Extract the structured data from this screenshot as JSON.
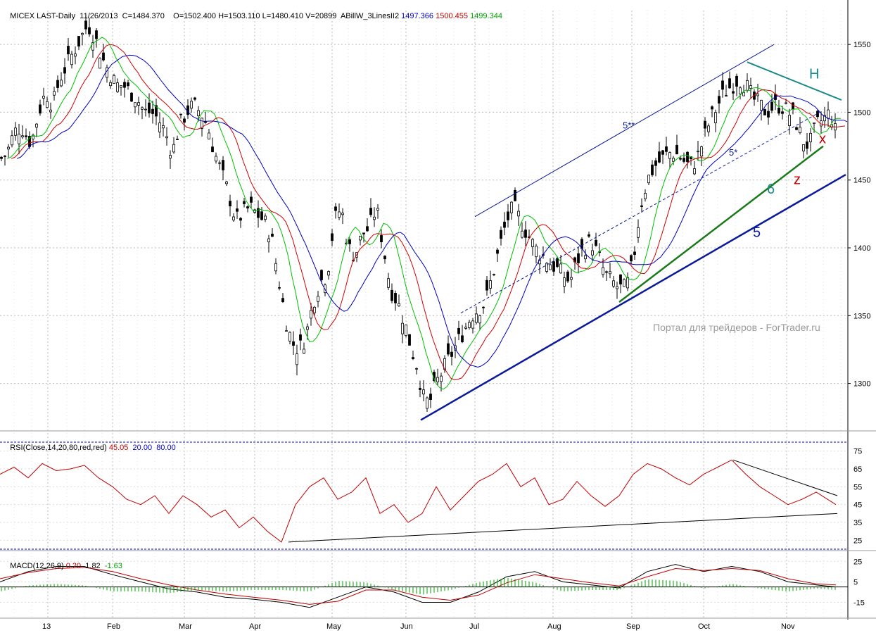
{
  "header": {
    "symbol": "MICEX LAST-Daily",
    "date": "11/26/2013",
    "close": "C=1484.370",
    "open": "O=1502.400",
    "high": "H=1503.110",
    "low": "L=1480.410",
    "volume": "V=20899",
    "indicator": "ABillW_3LinesII2",
    "ind_v1": "1497.366",
    "ind_v2": "1500.455",
    "ind_v3": "1499.344"
  },
  "rsi_header": {
    "label": "RSI(Close,14,20,80,red,red)",
    "value": "45.05",
    "lo": "20.00",
    "hi": "80.00"
  },
  "macd_header": {
    "label": "MACD(12,26,9)",
    "v1": "0.20",
    "v2": "1.82",
    "v3": "-1.63"
  },
  "annotations": {
    "wave_5_top": "5**",
    "wave_5_mid": "5*",
    "label_H": "H",
    "label_x": "x",
    "label_z": "z",
    "label_6": "6",
    "label_5": "5"
  },
  "watermark": "Портал для трейдеров - ForTrader.ru",
  "colors": {
    "price_bars": "#000000",
    "ma_green": "#00c000",
    "ma_red": "#d00000",
    "ma_blue": "#0000c0",
    "rsi": "#c00000",
    "macd": "#000000",
    "signal": "#c00000",
    "hist": "#00a000",
    "trend_blue": "#0a1a9a",
    "trend_green": "#1a7a1a",
    "trend_teal": "#1a8a8a"
  },
  "chart_data": [
    {
      "type": "candlestick",
      "panel": "price",
      "x_ticks": [
        "13",
        "Feb",
        "Mar",
        "Apr",
        "May",
        "Jun",
        "Jul",
        "Aug",
        "Sep",
        "Oct",
        "Nov"
      ],
      "y_ticks": [
        1550,
        1500,
        1450,
        1400,
        1350,
        1300
      ],
      "ylim": [
        1265,
        1575
      ],
      "grid": true,
      "series": [
        {
          "name": "close",
          "x": [
            0,
            10,
            20,
            30,
            40,
            45,
            55,
            65,
            75,
            85,
            95,
            105,
            115,
            125,
            135,
            145,
            155,
            165,
            175,
            185,
            195,
            205,
            215,
            225,
            235,
            245,
            255,
            265,
            275,
            285,
            295,
            305,
            315,
            325,
            335,
            345,
            355,
            365,
            375,
            385,
            395,
            405,
            415,
            425,
            435,
            445,
            455,
            465,
            475,
            485,
            495,
            505,
            515,
            525,
            535,
            545,
            555,
            565,
            575,
            585,
            595,
            600,
            610,
            620,
            630,
            640,
            650,
            660,
            670,
            680,
            690,
            700,
            710,
            720,
            730,
            740,
            750,
            760,
            770,
            780,
            790,
            800,
            810,
            820,
            830,
            840,
            850,
            860,
            870,
            880,
            890,
            900,
            910,
            920,
            930,
            940,
            950,
            960,
            970,
            980,
            990,
            1000,
            1010,
            1020,
            1030,
            1040,
            1050,
            1060,
            1070,
            1080,
            1090,
            1100,
            1110,
            1120,
            1130,
            1140,
            1150,
            1160,
            1170,
            1180,
            1188
          ],
          "y": [
            1465,
            1470,
            1485,
            1490,
            1480,
            1478,
            1500,
            1515,
            1505,
            1525,
            1535,
            1545,
            1555,
            1565,
            1555,
            1540,
            1530,
            1520,
            1520,
            1515,
            1510,
            1500,
            1500,
            1495,
            1485,
            1470,
            1490,
            1500,
            1505,
            1500,
            1490,
            1470,
            1455,
            1440,
            1420,
            1425,
            1430,
            1425,
            1420,
            1410,
            1380,
            1350,
            1330,
            1325,
            1335,
            1360,
            1375,
            1380,
            1420,
            1430,
            1400,
            1395,
            1410,
            1415,
            1430,
            1400,
            1370,
            1360,
            1345,
            1325,
            1310,
            1290,
            1285,
            1300,
            1310,
            1320,
            1330,
            1340,
            1350,
            1355,
            1360,
            1380,
            1400,
            1420,
            1430,
            1420,
            1410,
            1400,
            1395,
            1390,
            1385,
            1380,
            1375,
            1390,
            1400,
            1405,
            1395,
            1380,
            1375,
            1370,
            1370,
            1390,
            1430,
            1450,
            1460,
            1465,
            1470,
            1470,
            1465,
            1460,
            1465,
            1480,
            1495,
            1505,
            1515,
            1520,
            1525,
            1520,
            1510,
            1505,
            1500,
            1505,
            1505,
            1500,
            1495,
            1480,
            1475,
            1490,
            1495,
            1500,
            1484
          ]
        }
      ]
    },
    {
      "type": "line",
      "panel": "rsi",
      "title": "RSI(Close,14,20,80,red,red)",
      "y_ticks": [
        75,
        65,
        55,
        45,
        35,
        25
      ],
      "ylim": [
        20,
        80
      ],
      "series": [
        {
          "name": "RSI",
          "x": [
            0,
            20,
            40,
            60,
            80,
            100,
            120,
            140,
            160,
            180,
            200,
            220,
            240,
            260,
            280,
            300,
            320,
            340,
            360,
            380,
            400,
            420,
            440,
            460,
            480,
            500,
            520,
            540,
            560,
            580,
            600,
            620,
            640,
            660,
            680,
            700,
            720,
            740,
            760,
            780,
            800,
            820,
            840,
            860,
            880,
            900,
            920,
            940,
            960,
            980,
            1000,
            1020,
            1040,
            1060,
            1080,
            1100,
            1120,
            1140,
            1160,
            1188
          ],
          "y": [
            62,
            66,
            60,
            68,
            64,
            65,
            67,
            60,
            55,
            48,
            45,
            50,
            40,
            50,
            45,
            38,
            42,
            32,
            38,
            30,
            24,
            45,
            55,
            60,
            48,
            52,
            60,
            40,
            45,
            35,
            40,
            55,
            42,
            50,
            58,
            62,
            68,
            55,
            60,
            45,
            48,
            58,
            50,
            44,
            50,
            62,
            68,
            65,
            60,
            56,
            62,
            66,
            70,
            62,
            55,
            50,
            45,
            48,
            52,
            45
          ]
        }
      ]
    },
    {
      "type": "line",
      "panel": "macd",
      "title": "MACD(12,26,9)",
      "y_ticks": [
        25,
        5,
        -15
      ],
      "ylim": [
        -25,
        30
      ],
      "series": [
        {
          "name": "MACD",
          "x": [
            0,
            40,
            80,
            120,
            160,
            200,
            240,
            280,
            320,
            360,
            400,
            440,
            480,
            520,
            560,
            600,
            640,
            680,
            720,
            760,
            800,
            840,
            880,
            920,
            960,
            1000,
            1040,
            1080,
            1120,
            1160,
            1188
          ],
          "y": [
            5,
            15,
            20,
            20,
            12,
            5,
            -2,
            -5,
            -10,
            -12,
            -15,
            -20,
            -10,
            0,
            -5,
            -15,
            -15,
            -5,
            10,
            15,
            5,
            2,
            -1,
            15,
            22,
            15,
            20,
            15,
            5,
            2,
            0
          ]
        },
        {
          "name": "Signal",
          "x": [
            0,
            40,
            80,
            120,
            160,
            200,
            240,
            280,
            320,
            360,
            400,
            440,
            480,
            520,
            560,
            600,
            640,
            680,
            720,
            760,
            800,
            840,
            880,
            920,
            960,
            1000,
            1040,
            1080,
            1120,
            1160,
            1188
          ],
          "y": [
            8,
            14,
            18,
            19,
            15,
            8,
            2,
            -3,
            -7,
            -10,
            -13,
            -17,
            -14,
            -3,
            -3,
            -10,
            -13,
            -8,
            4,
            12,
            8,
            4,
            1,
            10,
            18,
            16,
            18,
            16,
            8,
            3,
            2
          ]
        }
      ]
    }
  ]
}
